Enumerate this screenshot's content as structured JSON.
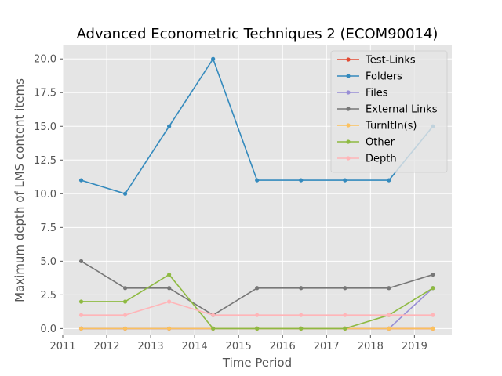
{
  "chart_data": {
    "type": "line",
    "title": "Advanced Econometric Techniques 2 (ECOM90014)",
    "xlabel": "Time Period",
    "ylabel": "Maximum depth of LMS content items",
    "xlim": [
      2011.0,
      2019.85
    ],
    "ylim": [
      -0.5,
      21.0
    ],
    "x_ticks": [
      {
        "value": 2011,
        "label": "2011"
      },
      {
        "value": 2012,
        "label": "2012"
      },
      {
        "value": 2013,
        "label": "2013"
      },
      {
        "value": 2014,
        "label": "2014"
      },
      {
        "value": 2015,
        "label": "2015"
      },
      {
        "value": 2016,
        "label": "2016"
      },
      {
        "value": 2017,
        "label": "2017"
      },
      {
        "value": 2018,
        "label": "2018"
      },
      {
        "value": 2019,
        "label": "2019"
      }
    ],
    "y_ticks": [
      {
        "value": 0.0,
        "label": "0.0"
      },
      {
        "value": 2.5,
        "label": "2.5"
      },
      {
        "value": 5.0,
        "label": "5.0"
      },
      {
        "value": 7.5,
        "label": "7.5"
      },
      {
        "value": 10.0,
        "label": "10.0"
      },
      {
        "value": 12.5,
        "label": "12.5"
      },
      {
        "value": 15.0,
        "label": "15.0"
      },
      {
        "value": 17.5,
        "label": "17.5"
      },
      {
        "value": 20.0,
        "label": "20.0"
      }
    ],
    "grid": true,
    "legend_position": "top-right",
    "x": [
      2011.42,
      2012.42,
      2013.42,
      2014.42,
      2015.42,
      2016.42,
      2017.42,
      2018.42,
      2019.42
    ],
    "series": [
      {
        "name": "Test-Links",
        "color": "#E24A33",
        "values": [
          0,
          0,
          0,
          0,
          0,
          0,
          0,
          0,
          0
        ]
      },
      {
        "name": "Folders",
        "color": "#348ABD",
        "values": [
          11,
          10,
          15,
          20,
          11,
          11,
          11,
          11,
          15
        ]
      },
      {
        "name": "Files",
        "color": "#988ED5",
        "values": [
          0,
          0,
          0,
          0,
          0,
          0,
          0,
          0,
          3
        ]
      },
      {
        "name": "External Links",
        "color": "#777777",
        "values": [
          5,
          3,
          3,
          1,
          3,
          3,
          3,
          3,
          4
        ]
      },
      {
        "name": "TurnItIn(s)",
        "color": "#FBC15E",
        "values": [
          0,
          0,
          0,
          0,
          0,
          0,
          0,
          0,
          0
        ]
      },
      {
        "name": "Other",
        "color": "#8EBA42",
        "values": [
          2,
          2,
          4,
          0,
          0,
          0,
          0,
          1,
          3
        ]
      },
      {
        "name": "Depth",
        "color": "#FFB5B8",
        "values": [
          1,
          1,
          2,
          1,
          1,
          1,
          1,
          1,
          1
        ]
      }
    ]
  }
}
